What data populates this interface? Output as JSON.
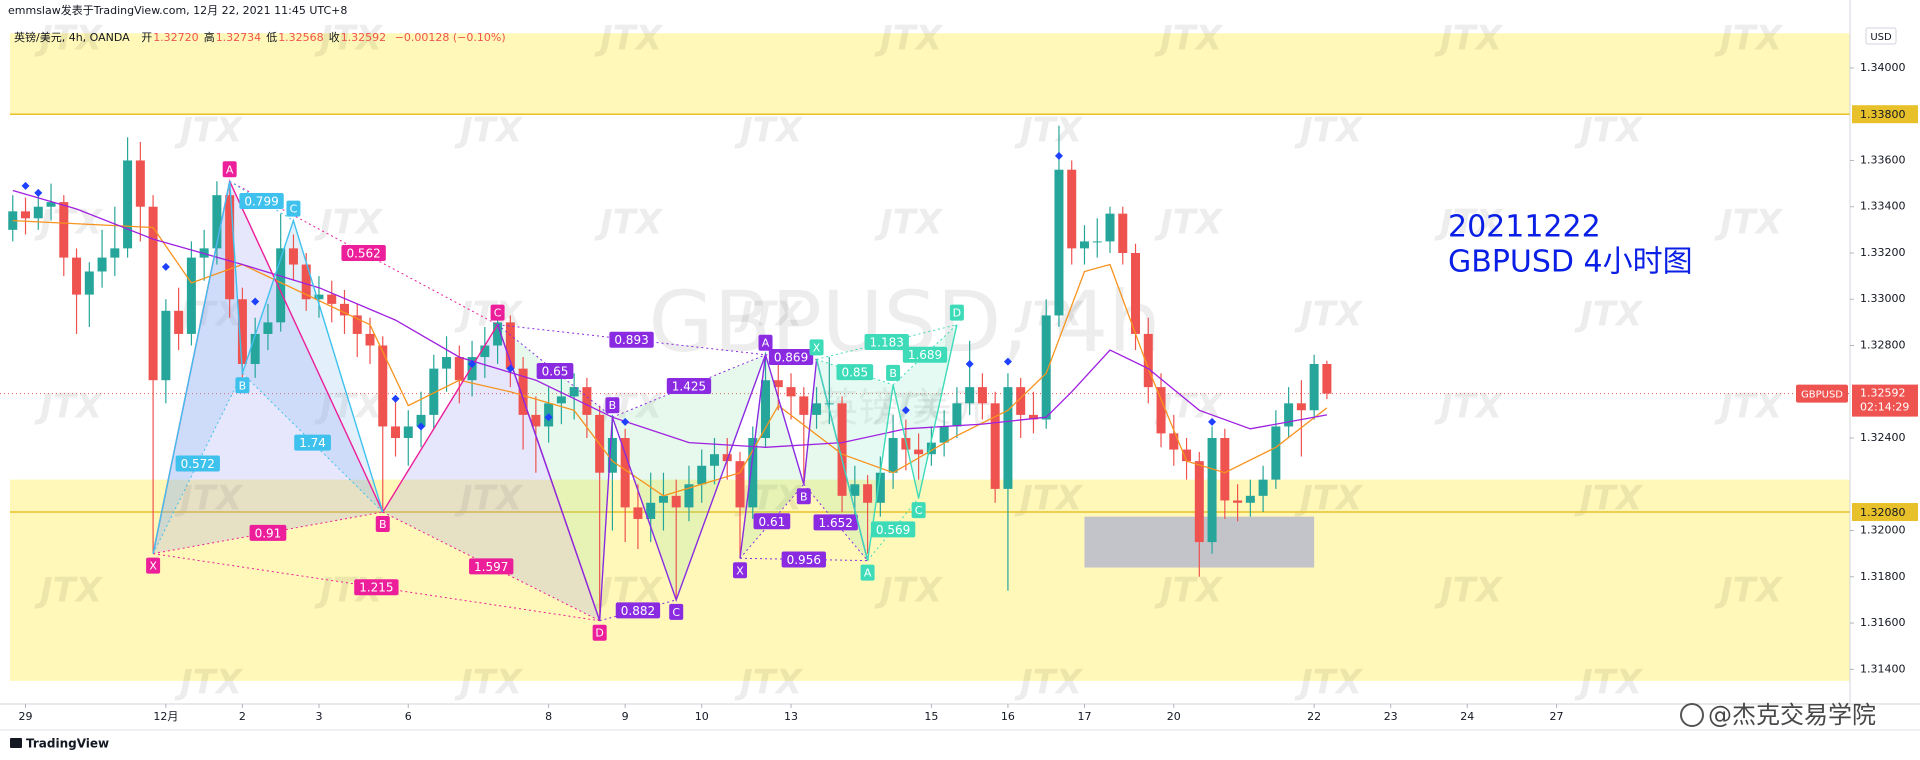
{
  "header": "emmslaw发表于TradingView.com, 12月 22, 2021 11:45 UTC+8",
  "legend": {
    "symbol": "英镑/美元, 4h, OANDA",
    "fields": [
      {
        "name": "开",
        "value": "1.32720"
      },
      {
        "name": "高",
        "value": "1.32734"
      },
      {
        "name": "低",
        "value": "1.32568"
      },
      {
        "name": "收",
        "value": "1.32592"
      }
    ],
    "change": "−0.00128 (−0.10%)"
  },
  "footer_logo": "TradingView",
  "footer_credit": "@杰克交易学院",
  "chart_data": {
    "type": "candlestick",
    "watermark": "JTX",
    "symbol_watermark": "GBPUSD, 4h",
    "symbol_watermark_sub": "英镑/美元",
    "annotations": [
      "20211222",
      "GBPUSD 4小时图"
    ],
    "annotation_color": "#0a1fe6",
    "currency": "USD",
    "up_color": "#26a69a",
    "down_color": "#ef5350",
    "xlim": [
      -1,
      144
    ],
    "ylim": [
      1.3125,
      1.3419
    ],
    "xticks": [
      {
        "value": 1,
        "label": "29"
      },
      {
        "value": 12,
        "label": "12月"
      },
      {
        "value": 18,
        "label": "2"
      },
      {
        "value": 24,
        "label": "3"
      },
      {
        "value": 31,
        "label": "6"
      },
      {
        "value": 42,
        "label": "8"
      },
      {
        "value": 48,
        "label": "9"
      },
      {
        "value": 54,
        "label": "10"
      },
      {
        "value": 61,
        "label": "13"
      },
      {
        "value": 72,
        "label": "15"
      },
      {
        "value": 78,
        "label": "16"
      },
      {
        "value": 84,
        "label": "17"
      },
      {
        "value": 91,
        "label": "20"
      },
      {
        "value": 102,
        "label": "22"
      },
      {
        "value": 108,
        "label": "23"
      },
      {
        "value": 114,
        "label": "24"
      },
      {
        "value": 121,
        "label": "27"
      }
    ],
    "yticks": [
      {
        "value": 1.34,
        "label": "1.34000"
      },
      {
        "value": 1.336,
        "label": "1.33600"
      },
      {
        "value": 1.334,
        "label": "1.33400"
      },
      {
        "value": 1.332,
        "label": "1.33200"
      },
      {
        "value": 1.33,
        "label": "1.33000"
      },
      {
        "value": 1.328,
        "label": "1.32800"
      },
      {
        "value": 1.324,
        "label": "1.32400"
      },
      {
        "value": 1.32,
        "label": "1.32000"
      },
      {
        "value": 1.318,
        "label": "1.31800"
      },
      {
        "value": 1.316,
        "label": "1.31600"
      },
      {
        "value": 1.314,
        "label": "1.31400"
      }
    ],
    "grid": false,
    "zones": [
      {
        "from": 1.338,
        "to": 1.3415
      },
      {
        "from": 1.3135,
        "to": 1.3222
      }
    ],
    "zone_color": "#fff8b8",
    "box": {
      "x": [
        84,
        102
      ],
      "y": [
        1.3184,
        1.3206
      ],
      "color": "#b8bacd"
    },
    "hlines": [
      {
        "value": 1.338,
        "label": "1.33800"
      },
      {
        "value": 1.3208,
        "label": "1.32080"
      }
    ],
    "hline_color": "#e8c12a",
    "last_price": {
      "value": 1.32592,
      "label": "1.32592"
    },
    "countdown": "02:14:29",
    "symbol_tag": "GBPUSD",
    "ohlc": [
      [
        1.333,
        1.3345,
        1.3325,
        1.3338
      ],
      [
        1.3338,
        1.3344,
        1.3328,
        1.3335
      ],
      [
        1.3335,
        1.3346,
        1.333,
        1.334
      ],
      [
        1.334,
        1.335,
        1.3334,
        1.3342
      ],
      [
        1.3342,
        1.3345,
        1.331,
        1.3318
      ],
      [
        1.3318,
        1.3322,
        1.3285,
        1.3302
      ],
      [
        1.3302,
        1.3316,
        1.3288,
        1.3312
      ],
      [
        1.3312,
        1.333,
        1.3305,
        1.3318
      ],
      [
        1.3318,
        1.334,
        1.331,
        1.3322
      ],
      [
        1.3322,
        1.337,
        1.3318,
        1.336
      ],
      [
        1.336,
        1.3368,
        1.3325,
        1.334
      ],
      [
        1.334,
        1.3345,
        1.319,
        1.3265
      ],
      [
        1.3265,
        1.33,
        1.3255,
        1.3295
      ],
      [
        1.3295,
        1.3305,
        1.3278,
        1.3285
      ],
      [
        1.3285,
        1.3325,
        1.328,
        1.3318
      ],
      [
        1.3318,
        1.333,
        1.3308,
        1.3322
      ],
      [
        1.3322,
        1.3351,
        1.3315,
        1.3345
      ],
      [
        1.3345,
        1.3348,
        1.3292,
        1.33
      ],
      [
        1.33,
        1.3305,
        1.3262,
        1.3272
      ],
      [
        1.3272,
        1.3292,
        1.3266,
        1.3285
      ],
      [
        1.3285,
        1.3298,
        1.3278,
        1.329
      ],
      [
        1.329,
        1.3337,
        1.3286,
        1.3322
      ],
      [
        1.3322,
        1.3328,
        1.3308,
        1.3315
      ],
      [
        1.3315,
        1.332,
        1.3295,
        1.33
      ],
      [
        1.33,
        1.331,
        1.3292,
        1.3302
      ],
      [
        1.3302,
        1.3308,
        1.329,
        1.3298
      ],
      [
        1.3298,
        1.3304,
        1.3285,
        1.3293
      ],
      [
        1.3293,
        1.3298,
        1.3275,
        1.3285
      ],
      [
        1.3285,
        1.3292,
        1.3272,
        1.328
      ],
      [
        1.328,
        1.3284,
        1.3208,
        1.3245
      ],
      [
        1.3245,
        1.3258,
        1.3232,
        1.324
      ],
      [
        1.324,
        1.3252,
        1.3228,
        1.3245
      ],
      [
        1.3245,
        1.326,
        1.3236,
        1.325
      ],
      [
        1.325,
        1.3276,
        1.3244,
        1.327
      ],
      [
        1.327,
        1.3284,
        1.326,
        1.3275
      ],
      [
        1.3275,
        1.328,
        1.3255,
        1.3265
      ],
      [
        1.3265,
        1.3282,
        1.3258,
        1.3275
      ],
      [
        1.3275,
        1.3288,
        1.3266,
        1.328
      ],
      [
        1.328,
        1.3295,
        1.3272,
        1.329
      ],
      [
        1.329,
        1.3293,
        1.3262,
        1.327
      ],
      [
        1.327,
        1.3275,
        1.3235,
        1.325
      ],
      [
        1.325,
        1.3258,
        1.3225,
        1.3245
      ],
      [
        1.3245,
        1.3262,
        1.3238,
        1.3255
      ],
      [
        1.3255,
        1.3266,
        1.3246,
        1.3258
      ],
      [
        1.3258,
        1.3268,
        1.3248,
        1.3262
      ],
      [
        1.3262,
        1.3266,
        1.324,
        1.325
      ],
      [
        1.325,
        1.3254,
        1.3161,
        1.3225
      ],
      [
        1.3225,
        1.325,
        1.32,
        1.324
      ],
      [
        1.324,
        1.3244,
        1.3195,
        1.321
      ],
      [
        1.321,
        1.322,
        1.3192,
        1.3205
      ],
      [
        1.3205,
        1.3225,
        1.3195,
        1.3212
      ],
      [
        1.3212,
        1.3225,
        1.32,
        1.3215
      ],
      [
        1.3215,
        1.3222,
        1.317,
        1.321
      ],
      [
        1.321,
        1.3228,
        1.3204,
        1.322
      ],
      [
        1.322,
        1.3235,
        1.3212,
        1.3228
      ],
      [
        1.3228,
        1.324,
        1.322,
        1.3233
      ],
      [
        1.3233,
        1.324,
        1.3222,
        1.323
      ],
      [
        1.323,
        1.3234,
        1.3188,
        1.321
      ],
      [
        1.321,
        1.3245,
        1.3205,
        1.324
      ],
      [
        1.324,
        1.3277,
        1.3236,
        1.3265
      ],
      [
        1.3265,
        1.3272,
        1.3252,
        1.3262
      ],
      [
        1.3262,
        1.3268,
        1.3248,
        1.3258
      ],
      [
        1.3258,
        1.3262,
        1.322,
        1.325
      ],
      [
        1.325,
        1.3262,
        1.3244,
        1.3255
      ],
      [
        1.3255,
        1.3275,
        1.3246,
        1.3255
      ],
      [
        1.3255,
        1.3258,
        1.3208,
        1.3215
      ],
      [
        1.3215,
        1.3228,
        1.3206,
        1.322
      ],
      [
        1.322,
        1.3224,
        1.319,
        1.3212
      ],
      [
        1.3212,
        1.3232,
        1.3206,
        1.3225
      ],
      [
        1.3225,
        1.325,
        1.3218,
        1.324
      ],
      [
        1.324,
        1.3248,
        1.3226,
        1.3235
      ],
      [
        1.3235,
        1.3242,
        1.3222,
        1.3233
      ],
      [
        1.3233,
        1.3245,
        1.3228,
        1.3238
      ],
      [
        1.3238,
        1.3252,
        1.3232,
        1.3245
      ],
      [
        1.3245,
        1.3262,
        1.324,
        1.3255
      ],
      [
        1.3255,
        1.3282,
        1.325,
        1.3262
      ],
      [
        1.3262,
        1.3268,
        1.3248,
        1.3255
      ],
      [
        1.3255,
        1.326,
        1.3212,
        1.3218
      ],
      [
        1.3218,
        1.3268,
        1.3174,
        1.3262
      ],
      [
        1.3262,
        1.3266,
        1.324,
        1.325
      ],
      [
        1.325,
        1.326,
        1.3242,
        1.3248
      ],
      [
        1.3248,
        1.33,
        1.3244,
        1.3293
      ],
      [
        1.3293,
        1.3375,
        1.3288,
        1.3356
      ],
      [
        1.3356,
        1.336,
        1.3315,
        1.3322
      ],
      [
        1.3322,
        1.3332,
        1.3315,
        1.3325
      ],
      [
        1.3325,
        1.3335,
        1.3318,
        1.3325
      ],
      [
        1.3325,
        1.334,
        1.332,
        1.3337
      ],
      [
        1.3337,
        1.334,
        1.3315,
        1.332
      ],
      [
        1.332,
        1.3324,
        1.3278,
        1.3285
      ],
      [
        1.3285,
        1.3292,
        1.3255,
        1.3262
      ],
      [
        1.3262,
        1.3268,
        1.3236,
        1.3242
      ],
      [
        1.3242,
        1.325,
        1.3228,
        1.3235
      ],
      [
        1.3235,
        1.324,
        1.3222,
        1.323
      ],
      [
        1.323,
        1.3234,
        1.318,
        1.3195
      ],
      [
        1.3195,
        1.3245,
        1.319,
        1.324
      ],
      [
        1.324,
        1.3244,
        1.3205,
        1.3213
      ],
      [
        1.3213,
        1.322,
        1.3204,
        1.3212
      ],
      [
        1.3212,
        1.3222,
        1.3206,
        1.3215
      ],
      [
        1.3215,
        1.3228,
        1.3208,
        1.3222
      ],
      [
        1.3222,
        1.3252,
        1.3218,
        1.3245
      ],
      [
        1.3245,
        1.3262,
        1.324,
        1.3255
      ],
      [
        1.3255,
        1.3265,
        1.3232,
        1.3252
      ],
      [
        1.3252,
        1.3276,
        1.3248,
        1.3272
      ],
      [
        1.3272,
        1.32734,
        1.32568,
        1.32592
      ]
    ],
    "moving_averages": [
      {
        "color": "#f7931e",
        "x": [
          0,
          11,
          14,
          18,
          23,
          28,
          31,
          35,
          39,
          44,
          47,
          51,
          57,
          60,
          65,
          69,
          74,
          78,
          81,
          84,
          86,
          89,
          92,
          95,
          99,
          103
        ],
        "values": [
          1.3334,
          1.3331,
          1.3307,
          1.3315,
          1.3302,
          1.3289,
          1.3254,
          1.3265,
          1.326,
          1.3252,
          1.323,
          1.3215,
          1.3225,
          1.3254,
          1.3233,
          1.3225,
          1.3241,
          1.3252,
          1.3268,
          1.3312,
          1.3315,
          1.327,
          1.323,
          1.3225,
          1.3236,
          1.3253
        ]
      },
      {
        "color": "#a020e0",
        "x": [
          0,
          5,
          11,
          18,
          24,
          30,
          35,
          41,
          47,
          53,
          59,
          65,
          70,
          76,
          81,
          83,
          86,
          89,
          93,
          97,
          103
        ],
        "values": [
          1.3347,
          1.3339,
          1.3326,
          1.3315,
          1.3305,
          1.3291,
          1.3275,
          1.3265,
          1.3249,
          1.3238,
          1.3236,
          1.3238,
          1.3244,
          1.3246,
          1.3249,
          1.326,
          1.3278,
          1.327,
          1.3252,
          1.3244,
          1.325
        ]
      }
    ],
    "markers": {
      "color": "#1e40ff",
      "x": [
        1,
        2,
        12,
        19,
        30,
        32,
        36,
        39,
        42,
        48,
        70,
        75,
        78,
        82,
        94
      ],
      "values": [
        1.3349,
        1.3346,
        1.3314,
        1.3299,
        1.3257,
        1.3245,
        1.3272,
        1.327,
        1.3249,
        1.3247,
        1.3252,
        1.3272,
        1.3273,
        1.3362,
        1.3247
      ]
    },
    "patterns": [
      {
        "color": "#ec1e9a",
        "fill": "#8c8cf0",
        "x": [
          11,
          17,
          29,
          38,
          46
        ],
        "y": [
          1.319,
          1.3351,
          1.3208,
          1.3289,
          1.3161
        ],
        "labels": [
          "X",
          "A",
          "B",
          "C",
          "D"
        ],
        "ratios": [
          0.91,
          0.562,
          1.597,
          1.215
        ]
      },
      {
        "color": "#3fc1ee",
        "fill": "#7fbcf2",
        "x": [
          11,
          17,
          18,
          22,
          29
        ],
        "y": [
          1.319,
          1.3351,
          1.3268,
          1.3334,
          1.3208
        ],
        "labels": [
          null,
          null,
          "B",
          "C",
          null
        ],
        "ratios": [
          0.572,
          0.799,
          1.74
        ]
      },
      {
        "color": "#8a2be2",
        "fill": "#8fe3a8",
        "x": [
          38,
          46,
          47,
          52,
          59
        ],
        "y": [
          1.3289,
          1.3161,
          1.3249,
          1.317,
          1.3276
        ],
        "labels": [
          null,
          null,
          "B",
          "C",
          null
        ],
        "ratios": [
          0.65,
          0.882,
          1.425,
          0.893
        ]
      },
      {
        "color": "#8a2be2",
        "fill": "#8fe3a8",
        "x": [
          57,
          59,
          62,
          63,
          67
        ],
        "y": [
          1.3188,
          1.3276,
          1.322,
          1.3274,
          1.3187
        ],
        "labels": [
          "X",
          "A",
          "B",
          null,
          null
        ],
        "ratios": [
          0.61,
          0.869,
          1.652,
          0.956
        ]
      },
      {
        "color": "#3ddbb8",
        "fill": "#8fe8cf",
        "x": [
          63,
          67,
          69,
          71,
          74
        ],
        "y": [
          1.3274,
          1.3187,
          1.3263,
          1.3214,
          1.3289
        ],
        "labels": [
          "X",
          "A",
          "B",
          "C",
          "D"
        ],
        "ratios": [
          0.85,
          0.569,
          1.689,
          1.183
        ]
      }
    ]
  }
}
